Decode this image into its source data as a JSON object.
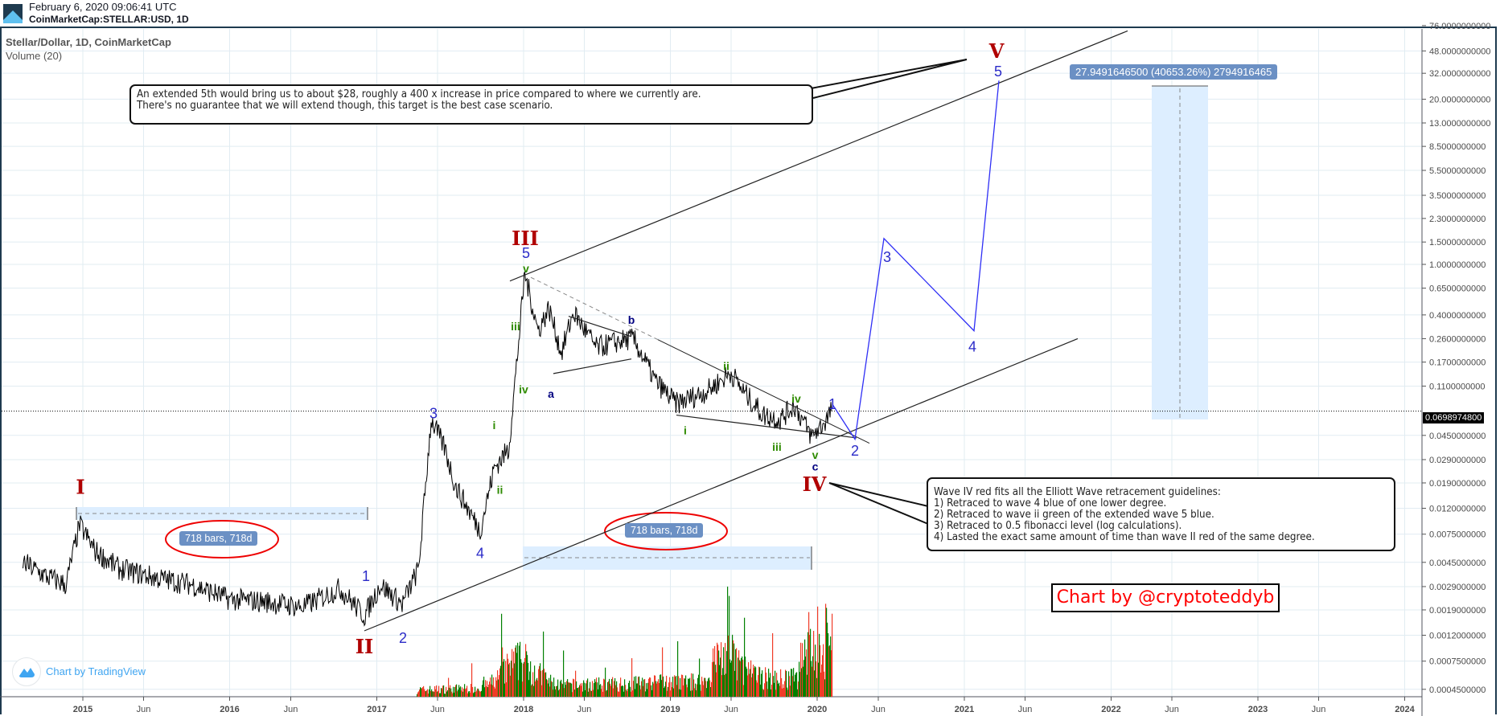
{
  "header": {
    "timestamp": "February 6, 2020 09:06:41 UTC",
    "symbol": "CoinMarketCap:STELLAR:USD, 1D"
  },
  "legend": {
    "title": "Stellar/Dollar, 1D, CoinMarketCap",
    "volume": "Volume (20)"
  },
  "annotations": {
    "callout_top": [
      "An extended 5th would bring us to about $28, roughly a 400 x increase in price compared to where we currently are.",
      "There's no guarantee that we will extend though, this target is the best case scenario."
    ],
    "callout_bottom": [
      "Wave IV red fits all the Elliott Wave retracement guidelines:",
      "1) Retraced to wave 4 blue of one lower degree.",
      "2) Retraced to wave ii green of the extended wave 5 blue.",
      "3) Retraced to 0.5 fibonacci level (log calculations).",
      "4) Lasted the exact same amount of time than wave II red of the same degree."
    ],
    "date_range_1": "718 bars, 718d",
    "date_range_2": "718 bars, 718d",
    "price_range": "27.9491646500 (40653.26%) 2794916465",
    "credit": "Chart by @cryptoteddyb",
    "tradingview": "Chart by TradingView",
    "last_price": "0.0698974800"
  },
  "colors": {
    "red_wave": "#b00000",
    "blue_wave": "#2b2bc8",
    "green_wave": "#2e8b00",
    "navy_wave": "#000080",
    "projection": "#2f2ff5",
    "volume_up": "#008000",
    "volume_down": "#f03c28",
    "grid": "#e1ecf2",
    "range_fill": "#ddeeff",
    "pill": "#6b90c4"
  },
  "chart_data": {
    "type": "line",
    "title": "Stellar/Dollar, 1D, CoinMarketCap",
    "y_scale": "log",
    "y_ticks": [
      "76.0000000000",
      "48.0000000000",
      "32.0000000000",
      "20.0000000000",
      "13.0000000000",
      "8.5000000000",
      "5.5000000000",
      "3.5000000000",
      "2.3000000000",
      "1.5000000000",
      "1.0000000000",
      "0.6500000000",
      "0.4000000000",
      "0.2600000000",
      "0.1700000000",
      "0.1100000000",
      "0.0450000000",
      "0.0290000000",
      "0.0190000000",
      "0.0120000000",
      "0.0075000000",
      "0.0045000000",
      "0.0029000000",
      "0.0019000000",
      "0.0012000000",
      "0.0007500000",
      "0.0004500000"
    ],
    "x_ticks": [
      {
        "label": "2015",
        "date": "2015-01-01"
      },
      {
        "label": "Jun",
        "date": "2015-06-01"
      },
      {
        "label": "2016",
        "date": "2016-01-01"
      },
      {
        "label": "Jun",
        "date": "2016-06-01"
      },
      {
        "label": "2017",
        "date": "2017-01-01"
      },
      {
        "label": "Jun",
        "date": "2017-06-01"
      },
      {
        "label": "2018",
        "date": "2018-01-01"
      },
      {
        "label": "Jun",
        "date": "2018-06-01"
      },
      {
        "label": "2019",
        "date": "2019-01-01"
      },
      {
        "label": "Jun",
        "date": "2019-06-01"
      },
      {
        "label": "2020",
        "date": "2020-01-01"
      },
      {
        "label": "Jun",
        "date": "2020-06-01"
      },
      {
        "label": "2021",
        "date": "2021-01-01"
      },
      {
        "label": "Jun",
        "date": "2021-06-01"
      },
      {
        "label": "2022",
        "date": "2022-01-01"
      },
      {
        "label": "Jun",
        "date": "2022-06-01"
      },
      {
        "label": "2023",
        "date": "2023-01-01"
      },
      {
        "label": "Jun",
        "date": "2023-06-01"
      },
      {
        "label": "2024",
        "date": "2024-01-01"
      }
    ],
    "price_path": [
      [
        "2014-08-05",
        0.0045
      ],
      [
        "2014-10-01",
        0.0035
      ],
      [
        "2014-11-20",
        0.003
      ],
      [
        "2014-12-24",
        0.0089
      ],
      [
        "2015-02-01",
        0.0055
      ],
      [
        "2015-04-01",
        0.004
      ],
      [
        "2015-07-01",
        0.0034
      ],
      [
        "2015-10-01",
        0.003
      ],
      [
        "2016-01-01",
        0.0023
      ],
      [
        "2016-04-01",
        0.0022
      ],
      [
        "2016-07-01",
        0.002
      ],
      [
        "2016-10-01",
        0.0028
      ],
      [
        "2016-12-01",
        0.0017
      ],
      [
        "2017-01-10",
        0.003
      ],
      [
        "2017-03-05",
        0.0021
      ],
      [
        "2017-04-15",
        0.004
      ],
      [
        "2017-05-16",
        0.06
      ],
      [
        "2017-06-20",
        0.035
      ],
      [
        "2017-07-15",
        0.018
      ],
      [
        "2017-09-15",
        0.008
      ],
      [
        "2017-10-20",
        0.025
      ],
      [
        "2017-11-25",
        0.035
      ],
      [
        "2017-12-20",
        0.25
      ],
      [
        "2018-01-04",
        0.85
      ],
      [
        "2018-02-06",
        0.3
      ],
      [
        "2018-03-05",
        0.45
      ],
      [
        "2018-04-05",
        0.2
      ],
      [
        "2018-05-05",
        0.42
      ],
      [
        "2018-07-01",
        0.22
      ],
      [
        "2018-09-01",
        0.25
      ],
      [
        "2018-10-01",
        0.26
      ],
      [
        "2018-11-25",
        0.12
      ],
      [
        "2019-01-15",
        0.08
      ],
      [
        "2019-04-01",
        0.1
      ],
      [
        "2019-06-01",
        0.14
      ],
      [
        "2019-07-01",
        0.1
      ],
      [
        "2019-08-20",
        0.065
      ],
      [
        "2019-10-01",
        0.06
      ],
      [
        "2019-11-05",
        0.078
      ],
      [
        "2019-12-18",
        0.044
      ],
      [
        "2020-01-15",
        0.055
      ],
      [
        "2020-02-06",
        0.0699
      ]
    ],
    "projection": [
      [
        "2020-02-08",
        0.079
      ],
      [
        "2020-04-04",
        0.042
      ],
      [
        "2020-06-15",
        1.6
      ],
      [
        "2021-01-25",
        0.3
      ],
      [
        "2021-03-28",
        28
      ]
    ],
    "wave_labels": [
      {
        "text": "I",
        "color": "red",
        "date": "2014-12-26",
        "price": 0.018
      },
      {
        "text": "II",
        "color": "red",
        "date": "2016-12-01",
        "price": 0.001
      },
      {
        "text": "III",
        "color": "red",
        "date": "2018-01-05",
        "price": 1.64
      },
      {
        "text": "IV",
        "color": "red",
        "date": "2019-12-25",
        "price": 0.019
      },
      {
        "text": "V",
        "color": "red",
        "date": "2021-03-22",
        "price": 49
      },
      {
        "text": "1",
        "color": "blue",
        "date": "2016-12-05",
        "price": 0.0035
      },
      {
        "text": "2",
        "color": "blue",
        "date": "2017-03-07",
        "price": 0.00114
      },
      {
        "text": "3",
        "color": "blue",
        "date": "2017-05-22",
        "price": 0.067
      },
      {
        "text": "4",
        "color": "blue",
        "date": "2017-09-15",
        "price": 0.0053
      },
      {
        "text": "5",
        "color": "blue",
        "date": "2018-01-07",
        "price": 1.23
      },
      {
        "text": "v",
        "color": "green",
        "date": "2018-01-07",
        "price": 0.94
      },
      {
        "text": "iii",
        "color": "green",
        "date": "2017-12-12",
        "price": 0.33
      },
      {
        "text": "iv",
        "color": "green",
        "date": "2018-01-01",
        "price": 0.105
      },
      {
        "text": "i",
        "color": "green",
        "date": "2017-10-20",
        "price": 0.055
      },
      {
        "text": "ii",
        "color": "green",
        "date": "2017-11-03",
        "price": 0.017
      },
      {
        "text": "a",
        "color": "navy",
        "date": "2018-03-10",
        "price": 0.097
      },
      {
        "text": "b",
        "color": "navy",
        "date": "2018-09-26",
        "price": 0.37
      },
      {
        "text": "c",
        "color": "navy",
        "date": "2019-12-27",
        "price": 0.026
      },
      {
        "text": "v",
        "color": "green",
        "date": "2019-12-27",
        "price": 0.032
      },
      {
        "text": "i",
        "color": "green",
        "date": "2019-02-07",
        "price": 0.05
      },
      {
        "text": "ii",
        "color": "green",
        "date": "2019-05-20",
        "price": 0.16
      },
      {
        "text": "iii",
        "color": "green",
        "date": "2019-09-23",
        "price": 0.037
      },
      {
        "text": "iv",
        "color": "green",
        "date": "2019-11-10",
        "price": 0.089
      },
      {
        "text": "1",
        "color": "blue",
        "date": "2020-02-08",
        "price": 0.079
      },
      {
        "text": "2",
        "color": "blue",
        "date": "2020-04-04",
        "price": 0.034
      },
      {
        "text": "3",
        "color": "blue",
        "date": "2020-06-23",
        "price": 1.14
      },
      {
        "text": "4",
        "color": "blue",
        "date": "2021-01-21",
        "price": 0.225
      },
      {
        "text": "5",
        "color": "blue",
        "date": "2021-03-26",
        "price": 33
      }
    ],
    "trend_lines": [
      {
        "name": "upper-channel",
        "from": [
          "2017-11-28",
          0.74
        ],
        "to": [
          "2022-02-11",
          69
        ]
      },
      {
        "name": "lower-channel",
        "from": [
          "2016-12-01",
          0.0013
        ],
        "to": [
          "2021-10-10",
          0.26
        ]
      },
      {
        "name": "triangle-upper",
        "from": [
          "2018-01-19",
          0.79
        ],
        "to": [
          "2020-05-10",
          0.039
        ],
        "dashed_until": "2018-12-01"
      },
      {
        "name": "triangle-lower",
        "from": [
          "2019-01-16",
          0.065
        ],
        "to": [
          "2020-04-08",
          0.043
        ]
      },
      {
        "name": "ab-upper",
        "from": [
          "2018-04-23",
          0.39
        ],
        "to": [
          "2018-09-26",
          0.27
        ]
      },
      {
        "name": "ab-lower",
        "from": [
          "2018-03-16",
          0.138
        ],
        "to": [
          "2018-09-26",
          0.18
        ]
      }
    ],
    "last_price": 0.06989748,
    "target_price": 27.94916465,
    "grid": true
  }
}
